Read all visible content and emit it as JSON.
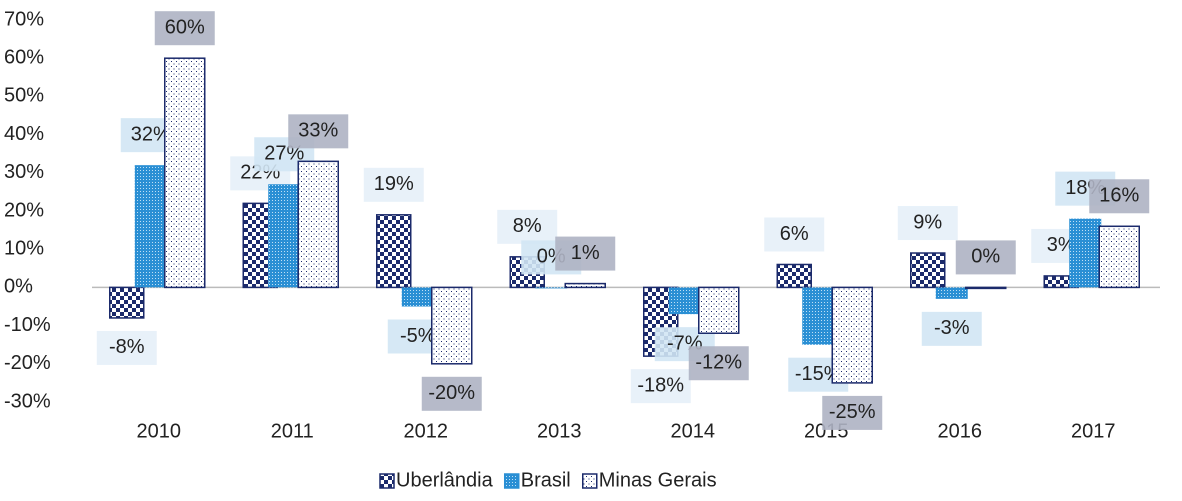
{
  "chart_data": {
    "type": "bar",
    "categories": [
      "2010",
      "2011",
      "2012",
      "2013",
      "2014",
      "2015",
      "2016",
      "2017"
    ],
    "series": [
      {
        "name": "Uberlândia",
        "color": "#1b2a6b",
        "values": [
          -8,
          22,
          19,
          8,
          -18,
          6,
          9,
          3
        ],
        "value_labels": [
          "-8%",
          "22%",
          "19%",
          "8%",
          "-18%",
          "6%",
          "9%",
          "3%"
        ]
      },
      {
        "name": "Brasil",
        "color": "#2a8fd4",
        "values": [
          32,
          27,
          -5,
          0,
          -7,
          -15,
          -3,
          18
        ],
        "value_labels": [
          "32%",
          "27%",
          "-5%",
          "0%",
          "-7%",
          "-15%",
          "-3%",
          "18%"
        ]
      },
      {
        "name": "Minas Gerais",
        "color": "#1b2a6b",
        "values": [
          60,
          33,
          -20,
          1,
          -12,
          -25,
          0,
          16
        ],
        "value_labels": [
          "60%",
          "33%",
          "-20%",
          "1%",
          "-12%",
          "-25%",
          "0%",
          "16%"
        ]
      }
    ],
    "ylim": [
      -30,
      70
    ],
    "yticks": [
      {
        "value": -30,
        "label": "-30%"
      },
      {
        "value": -20,
        "label": "-20%"
      },
      {
        "value": -10,
        "label": "-10%"
      },
      {
        "value": 0,
        "label": "0%"
      },
      {
        "value": 10,
        "label": "10%"
      },
      {
        "value": 20,
        "label": "20%"
      },
      {
        "value": 30,
        "label": "30%"
      },
      {
        "value": 40,
        "label": "40%"
      },
      {
        "value": 50,
        "label": "50%"
      },
      {
        "value": 60,
        "label": "60%"
      },
      {
        "value": 70,
        "label": "70%"
      }
    ],
    "legend": "bottom"
  }
}
